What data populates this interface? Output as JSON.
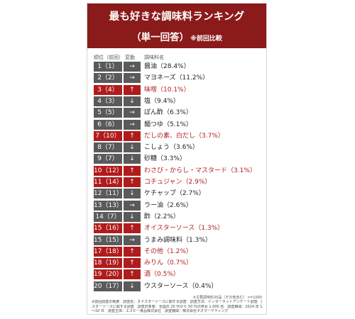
{
  "title": "最も好きな調味料ランキング",
  "subtitle": "（単一回答）",
  "subtitle_note": "※前回比較",
  "columns": {
    "rank": "順位（前回）",
    "change": "変動",
    "name": "調味料名"
  },
  "colors": {
    "header": "#8b1a1a",
    "up": "#b01c1c",
    "flat_down": "#5a5a5a",
    "highlight_text": "#b01c1c",
    "normal_text": "#222222"
  },
  "chart_data": {
    "type": "table",
    "title": "最も好きな調味料ランキング",
    "subtitle": "（単一回答）※前回比較",
    "rows": [
      {
        "rank": "1（1）",
        "change": "→",
        "trend": "flat",
        "label": "醤油（28.4%）",
        "name": "醤油",
        "value": 28.4
      },
      {
        "rank": "2（2）",
        "change": "→",
        "trend": "flat",
        "label": "マヨネーズ（11.2%）",
        "name": "マヨネーズ",
        "value": 11.2
      },
      {
        "rank": "3（4）",
        "change": "↑",
        "trend": "up",
        "label": "味噌（10.1%）",
        "name": "味噌",
        "value": 10.1
      },
      {
        "rank": "4（3）",
        "change": "↓",
        "trend": "down",
        "label": "塩（9.4%）",
        "name": "塩",
        "value": 9.4
      },
      {
        "rank": "5（5）",
        "change": "→",
        "trend": "flat",
        "label": "ぽん酢（6.3%）",
        "name": "ぽん酢",
        "value": 6.3
      },
      {
        "rank": "6（6）",
        "change": "→",
        "trend": "flat",
        "label": "麺つゆ（5.1%）",
        "name": "麺つゆ",
        "value": 5.1
      },
      {
        "rank": "7（10）",
        "change": "↑",
        "trend": "up",
        "label": "だしの素、白だし（3.7%）",
        "name": "だしの素、白だし",
        "value": 3.7
      },
      {
        "rank": "8（7）",
        "change": "↓",
        "trend": "down",
        "label": "こしょう（3.6%）",
        "name": "こしょう",
        "value": 3.6
      },
      {
        "rank": "9（7）",
        "change": "↓",
        "trend": "down",
        "label": "砂糖（3.3%）",
        "name": "砂糖",
        "value": 3.3
      },
      {
        "rank": "10（12）",
        "change": "↑",
        "trend": "up",
        "label": "わさび・からし・マスタード（3.1%）",
        "name": "わさび・からし・マスタード",
        "value": 3.1
      },
      {
        "rank": "11（14）",
        "change": "↑",
        "trend": "up",
        "label": "コチュジャン（2.9%）",
        "name": "コチュジャン",
        "value": 2.9
      },
      {
        "rank": "12（11）",
        "change": "↓",
        "trend": "down",
        "label": "ケチャップ（2.7%）",
        "name": "ケチャップ",
        "value": 2.7
      },
      {
        "rank": "13（13）",
        "change": "→",
        "trend": "flat",
        "label": "ラー油（2.6%）",
        "name": "ラー油",
        "value": 2.6
      },
      {
        "rank": "14（7）",
        "change": "↓",
        "trend": "down",
        "label": "酢（2.2%）",
        "name": "酢",
        "value": 2.2
      },
      {
        "rank": "15（16）",
        "change": "↑",
        "trend": "up",
        "label": "オイスターソース（1.3%）",
        "name": "オイスターソース",
        "value": 1.3
      },
      {
        "rank": "15（15）",
        "change": "→",
        "trend": "flat",
        "label": "うまみ調味料（1.3%）",
        "name": "うまみ調味料",
        "value": 1.3
      },
      {
        "rank": "17（18）",
        "change": "↑",
        "trend": "up",
        "label": "その他（1.2%）",
        "name": "その他",
        "value": 1.2
      },
      {
        "rank": "18（19）",
        "change": "↑",
        "trend": "up",
        "label": "みりん（0.7%）",
        "name": "みりん",
        "value": 0.7
      },
      {
        "rank": "19（20）",
        "change": "↑",
        "trend": "up",
        "label": "酒（0.5%）",
        "name": "酒",
        "value": 0.5
      },
      {
        "rank": "20（17）",
        "change": "↓",
        "trend": "down",
        "label": "ウスターソース（0.4%）",
        "name": "ウスターソース",
        "value": 0.4
      }
    ]
  },
  "footer": {
    "note_right": "※主要調味料20品（その他含む） n=1000",
    "lines": [
      "※前回調査の概要　調査名：オイスターソースに関する調査　調査方法：インターネットアンケート調査　調査テーマ：オイ",
      "スターソースに関する調査　調査対象者：全国の 20 代から 50 代の男女 1,000 名　調査期間：2024 年 12 月 7 日",
      "〜10 日　調査主体：エスビー食品株式会社　調査機関：株式会社ネオマーケティング"
    ]
  }
}
